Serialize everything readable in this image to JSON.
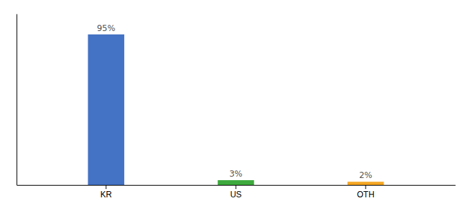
{
  "chart_data": {
    "type": "bar",
    "categories": [
      "KR",
      "US",
      "OTH"
    ],
    "values": [
      95,
      3,
      2
    ],
    "value_labels": [
      "95%",
      "3%",
      "2%"
    ],
    "colors": [
      "#4472C4",
      "#3DAA3D",
      "#F5A623"
    ],
    "ylim": [
      0,
      108
    ],
    "data_labels": true,
    "tick_labels": "x"
  }
}
